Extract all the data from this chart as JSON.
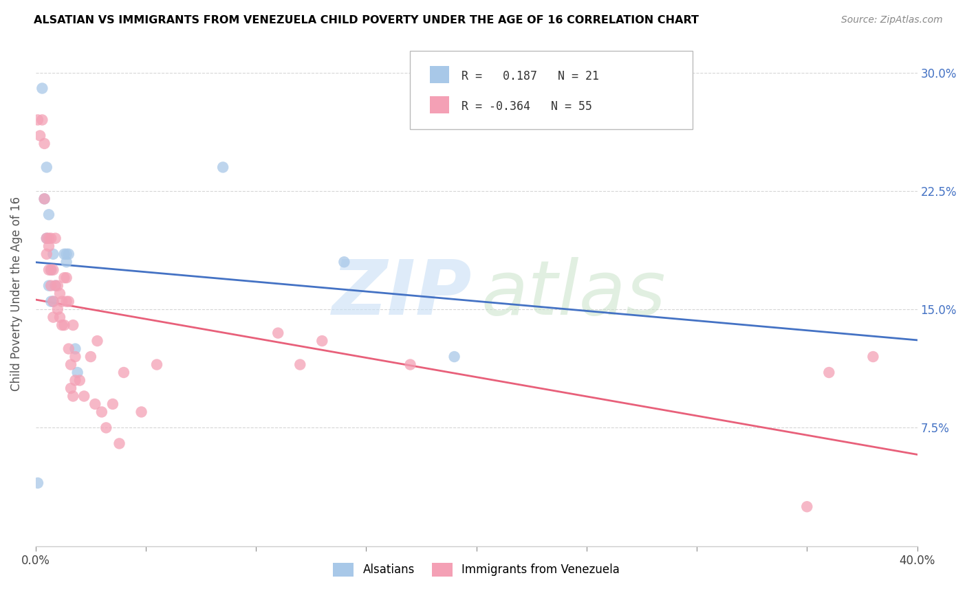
{
  "title": "ALSATIAN VS IMMIGRANTS FROM VENEZUELA CHILD POVERTY UNDER THE AGE OF 16 CORRELATION CHART",
  "source": "Source: ZipAtlas.com",
  "ylabel": "Child Poverty Under the Age of 16",
  "legend_label1": "Alsatians",
  "legend_label2": "Immigrants from Venezuela",
  "r1": "0.187",
  "n1": "21",
  "r2": "-0.364",
  "n2": "55",
  "color_blue": "#A8C8E8",
  "color_pink": "#F4A0B5",
  "line_blue": "#4472C4",
  "line_pink": "#E8607A",
  "xmin": 0.0,
  "xmax": 0.4,
  "ymin": 0.0,
  "ymax": 0.32,
  "alsatians_x": [
    0.001,
    0.003,
    0.004,
    0.005,
    0.005,
    0.006,
    0.006,
    0.007,
    0.007,
    0.008,
    0.008,
    0.009,
    0.013,
    0.014,
    0.015,
    0.014,
    0.018,
    0.019,
    0.085,
    0.14,
    0.19
  ],
  "alsatians_y": [
    0.04,
    0.29,
    0.22,
    0.24,
    0.195,
    0.21,
    0.165,
    0.175,
    0.155,
    0.155,
    0.185,
    0.165,
    0.185,
    0.18,
    0.185,
    0.185,
    0.125,
    0.11,
    0.24,
    0.18,
    0.12
  ],
  "venezuela_x": [
    0.001,
    0.002,
    0.003,
    0.004,
    0.004,
    0.005,
    0.005,
    0.006,
    0.006,
    0.006,
    0.007,
    0.007,
    0.007,
    0.008,
    0.008,
    0.008,
    0.009,
    0.009,
    0.01,
    0.01,
    0.011,
    0.011,
    0.012,
    0.012,
    0.013,
    0.013,
    0.014,
    0.014,
    0.015,
    0.015,
    0.016,
    0.016,
    0.017,
    0.017,
    0.018,
    0.018,
    0.02,
    0.022,
    0.025,
    0.027,
    0.028,
    0.03,
    0.032,
    0.035,
    0.038,
    0.04,
    0.048,
    0.055,
    0.11,
    0.12,
    0.13,
    0.17,
    0.35,
    0.36,
    0.38
  ],
  "venezuela_y": [
    0.27,
    0.26,
    0.27,
    0.22,
    0.255,
    0.195,
    0.185,
    0.195,
    0.19,
    0.175,
    0.195,
    0.175,
    0.165,
    0.155,
    0.175,
    0.145,
    0.195,
    0.165,
    0.165,
    0.15,
    0.16,
    0.145,
    0.155,
    0.14,
    0.17,
    0.14,
    0.17,
    0.155,
    0.155,
    0.125,
    0.115,
    0.1,
    0.14,
    0.095,
    0.12,
    0.105,
    0.105,
    0.095,
    0.12,
    0.09,
    0.13,
    0.085,
    0.075,
    0.09,
    0.065,
    0.11,
    0.085,
    0.115,
    0.135,
    0.115,
    0.13,
    0.115,
    0.025,
    0.11,
    0.12
  ],
  "yticks": [
    0.075,
    0.15,
    0.225,
    0.3
  ],
  "ytick_labels": [
    "7.5%",
    "15.0%",
    "22.5%",
    "30.0%"
  ]
}
